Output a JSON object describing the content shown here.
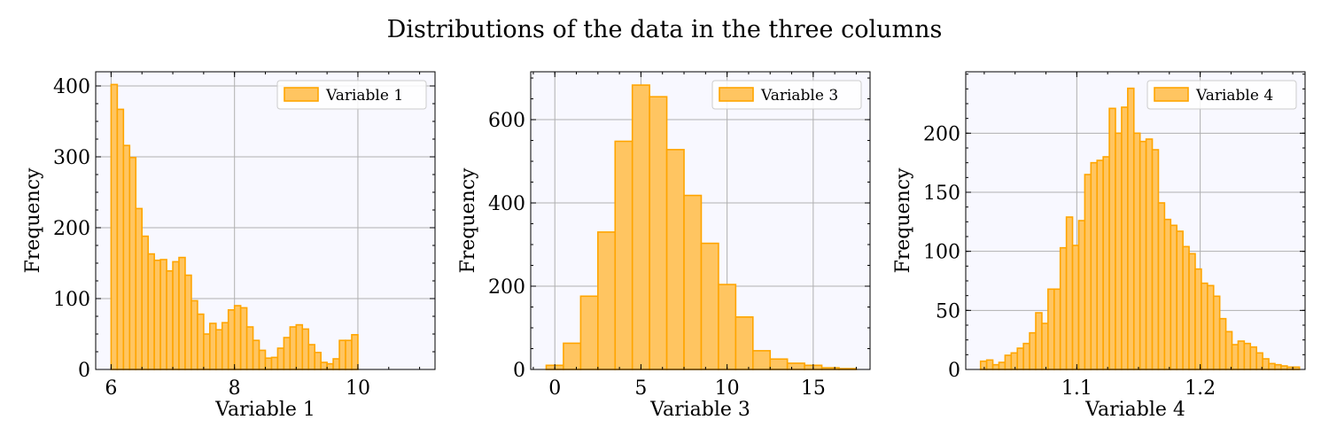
{
  "figure": {
    "title": "Distributions of the data in the three columns"
  },
  "style": {
    "bar_fill": "#FFC561",
    "bar_edge": "#FFA500",
    "axes_background": "#F8F8FF",
    "grid_color": "#B0B0B0"
  },
  "chart_data": [
    {
      "type": "bar",
      "subtype": "histogram",
      "xlabel": "Variable 1",
      "ylabel": "Frequency",
      "legend": "Variable 1",
      "legend_position": "top-right",
      "grid": true,
      "xlim": [
        5.75,
        11.25
      ],
      "ylim": [
        0,
        420
      ],
      "xticks": [
        6,
        8,
        10
      ],
      "yticks": [
        0,
        100,
        200,
        300,
        400
      ],
      "bin_start": 6.0,
      "bin_width": 0.1,
      "values": [
        402,
        367,
        316,
        299,
        227,
        188,
        163,
        154,
        155,
        139,
        152,
        158,
        133,
        97,
        78,
        50,
        65,
        56,
        66,
        84,
        90,
        87,
        60,
        41,
        27,
        16,
        17,
        30,
        45,
        60,
        63,
        57,
        35,
        24,
        10,
        8,
        15,
        41,
        41,
        49
      ]
    },
    {
      "type": "bar",
      "subtype": "histogram",
      "xlabel": "Variable 3",
      "ylabel": "Frequency",
      "legend": "Variable 3",
      "legend_position": "top-right",
      "grid": true,
      "xlim": [
        -1.4,
        18.3
      ],
      "ylim": [
        0,
        715
      ],
      "xticks": [
        0,
        5,
        10,
        15
      ],
      "yticks": [
        0,
        200,
        400,
        600
      ],
      "bin_start": -0.5,
      "bin_width": 1.0,
      "values": [
        10,
        63,
        176,
        330,
        548,
        683,
        655,
        528,
        418,
        303,
        204,
        126,
        45,
        25,
        15,
        10,
        4,
        2
      ]
    },
    {
      "type": "bar",
      "subtype": "histogram",
      "xlabel": "Variable 4",
      "ylabel": "Frequency",
      "legend": "Variable 4",
      "legend_position": "top-right",
      "grid": true,
      "xlim": [
        1.01,
        1.285
      ],
      "ylim": [
        0,
        252
      ],
      "xticks": [
        1.1,
        1.2
      ],
      "yticks": [
        0,
        50,
        100,
        150,
        200
      ],
      "bin_start": 1.022,
      "bin_width": 0.00497,
      "values": [
        7,
        8,
        4,
        6,
        12,
        14,
        18,
        22,
        31,
        48,
        39,
        68,
        68,
        103,
        129,
        105,
        126,
        165,
        175,
        177,
        180,
        221,
        200,
        222,
        238,
        200,
        193,
        195,
        186,
        141,
        127,
        122,
        117,
        104,
        98,
        85,
        73,
        71,
        62,
        43,
        32,
        21,
        24,
        22,
        19,
        14,
        9,
        5,
        4,
        3,
        2,
        2
      ]
    }
  ]
}
